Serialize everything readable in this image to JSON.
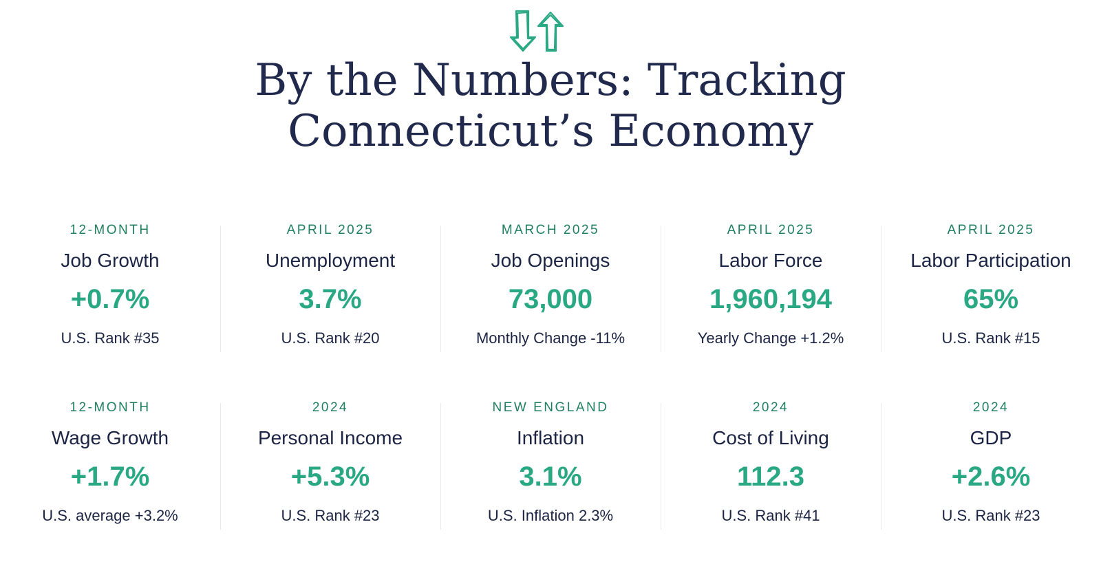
{
  "header": {
    "logo_icon": "down-up-arrows-icon",
    "title_line1": "By the Numbers: Tracking",
    "title_line2": "Connecticut’s Economy"
  },
  "colors": {
    "title": "#212a4d",
    "label": "#1f7f5e",
    "value": "#2aa884",
    "text": "#1c2444",
    "divider": "#e6e8ec"
  },
  "metrics": [
    [
      {
        "period": "12-MONTH",
        "name": "Job Growth",
        "value": "+0.7%",
        "note": "U.S. Rank #35"
      },
      {
        "period": "APRIL 2025",
        "name": "Unemployment",
        "value": "3.7%",
        "note": "U.S. Rank #20"
      },
      {
        "period": "MARCH 2025",
        "name": "Job Openings",
        "value": "73,000",
        "note": "Monthly Change -11%"
      },
      {
        "period": "APRIL 2025",
        "name": "Labor Force",
        "value": "1,960,194",
        "note": "Yearly Change +1.2%"
      },
      {
        "period": "APRIL 2025",
        "name": "Labor Participation",
        "value": "65%",
        "note": "U.S. Rank #15"
      }
    ],
    [
      {
        "period": "12-MONTH",
        "name": "Wage Growth",
        "value": "+1.7%",
        "note": "U.S. average +3.2%"
      },
      {
        "period": "2024",
        "name": "Personal Income",
        "value": "+5.3%",
        "note": "U.S. Rank #23"
      },
      {
        "period": "NEW ENGLAND",
        "name": "Inflation",
        "value": "3.1%",
        "note": "U.S. Inflation 2.3%"
      },
      {
        "period": "2024",
        "name": "Cost of Living",
        "value": "112.3",
        "note": "U.S. Rank #41"
      },
      {
        "period": "2024",
        "name": "GDP",
        "value": "+2.6%",
        "note": "U.S. Rank #23"
      }
    ]
  ]
}
